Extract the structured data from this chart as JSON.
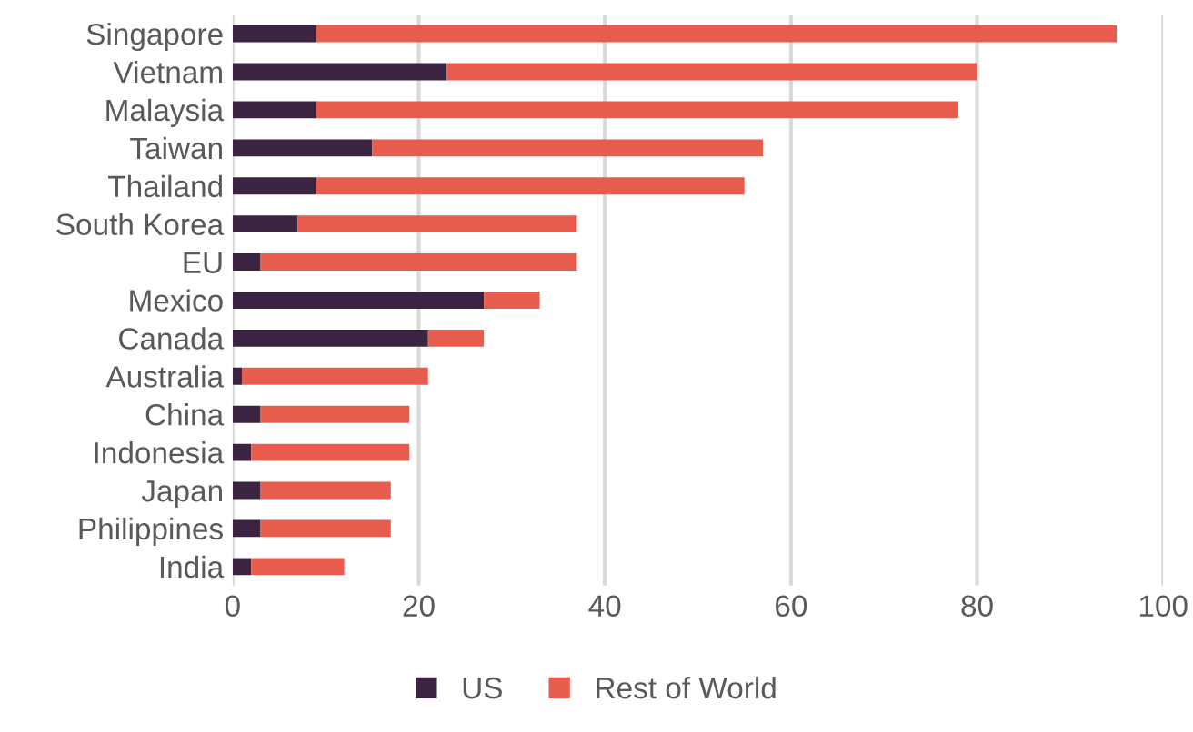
{
  "chart_data": {
    "type": "bar",
    "orientation": "horizontal",
    "stacked": true,
    "categories": [
      "Singapore",
      "Vietnam",
      "Malaysia",
      "Taiwan",
      "Thailand",
      "South Korea",
      "EU",
      "Mexico",
      "Canada",
      "Australia",
      "China",
      "Indonesia",
      "Japan",
      "Philippines",
      "India"
    ],
    "series": [
      {
        "name": "US",
        "color": "#3b2442",
        "values": [
          9,
          23,
          9,
          15,
          9,
          7,
          3,
          27,
          21,
          1,
          3,
          2,
          3,
          3,
          2
        ]
      },
      {
        "name": "Rest of World",
        "color": "#e85c4e",
        "values": [
          86,
          57,
          69,
          42,
          46,
          30,
          34,
          6,
          6,
          20,
          16,
          17,
          14,
          14,
          10
        ]
      }
    ],
    "xlim": [
      0,
      100
    ],
    "xticks": [
      0,
      20,
      40,
      60,
      80,
      100
    ],
    "grid": "x",
    "legend": "bottom"
  }
}
